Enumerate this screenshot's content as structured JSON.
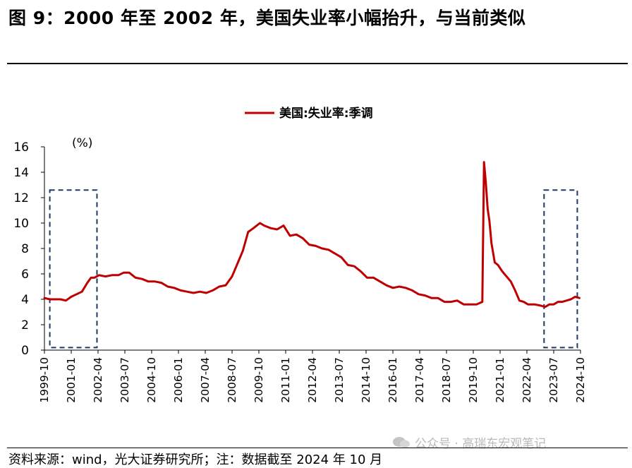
{
  "header": {
    "title": "图 9：2000 年至 2002 年，美国失业率小幅抬升，与当前类似"
  },
  "footer": {
    "source": "资料来源：wind，光大证券研究所；注：数据截至 2024 年 10 月",
    "watermark": "公众号 · 高瑞东宏观笔记"
  },
  "chart_data": {
    "type": "line",
    "title": "",
    "unit_label": "(%)",
    "xlabel": "",
    "ylabel": "(%)",
    "ylim": [
      0,
      16
    ],
    "yticks": [
      0,
      2,
      4,
      6,
      8,
      10,
      12,
      14,
      16
    ],
    "x_range": [
      1999.75,
      2024.75
    ],
    "xtick_labels": [
      "1999-10",
      "2001-01",
      "2002-04",
      "2003-07",
      "2004-10",
      "2006-01",
      "2007-04",
      "2008-07",
      "2009-10",
      "2011-01",
      "2012-04",
      "2013-07",
      "2014-10",
      "2016-01",
      "2017-04",
      "2018-07",
      "2019-10",
      "2021-01",
      "2022-04",
      "2023-07",
      "2024-10"
    ],
    "legend": "top-center",
    "series": [
      {
        "name": "美国:失业率:季调",
        "color": "#c00000",
        "x": [
          1999.75,
          2000.0,
          2000.25,
          2000.5,
          2000.75,
          2001.0,
          2001.25,
          2001.5,
          2001.75,
          2001.92,
          2002.08,
          2002.3,
          2002.6,
          2002.9,
          2003.2,
          2003.45,
          2003.7,
          2004.0,
          2004.3,
          2004.6,
          2004.9,
          2005.2,
          2005.5,
          2005.8,
          2006.1,
          2006.4,
          2006.7,
          2007.0,
          2007.3,
          2007.6,
          2007.9,
          2008.2,
          2008.5,
          2008.75,
          2009.0,
          2009.25,
          2009.5,
          2009.8,
          2010.0,
          2010.3,
          2010.6,
          2010.9,
          2011.2,
          2011.5,
          2011.8,
          2012.1,
          2012.4,
          2012.7,
          2013.0,
          2013.3,
          2013.6,
          2013.9,
          2014.2,
          2014.5,
          2014.8,
          2015.1,
          2015.4,
          2015.7,
          2016.0,
          2016.3,
          2016.6,
          2016.9,
          2017.2,
          2017.5,
          2017.8,
          2018.1,
          2018.4,
          2018.7,
          2019.0,
          2019.3,
          2019.6,
          2019.9,
          2020.17,
          2020.25,
          2020.33,
          2020.42,
          2020.5,
          2020.6,
          2020.75,
          2020.9,
          2021.1,
          2021.3,
          2021.5,
          2021.7,
          2021.9,
          2022.1,
          2022.3,
          2022.6,
          2022.9,
          2023.1,
          2023.3,
          2023.5,
          2023.7,
          2023.9,
          2024.1,
          2024.3,
          2024.5,
          2024.7
        ],
        "y": [
          4.1,
          4.0,
          4.0,
          4.0,
          3.9,
          4.2,
          4.4,
          4.6,
          5.3,
          5.7,
          5.7,
          5.9,
          5.8,
          5.9,
          5.9,
          6.1,
          6.1,
          5.7,
          5.6,
          5.4,
          5.4,
          5.3,
          5.0,
          4.9,
          4.7,
          4.6,
          4.5,
          4.6,
          4.5,
          4.7,
          5.0,
          5.1,
          5.8,
          6.8,
          7.8,
          9.3,
          9.6,
          10.0,
          9.8,
          9.6,
          9.5,
          9.8,
          9.0,
          9.1,
          8.8,
          8.3,
          8.2,
          8.0,
          7.9,
          7.6,
          7.3,
          6.7,
          6.6,
          6.2,
          5.7,
          5.7,
          5.4,
          5.1,
          4.9,
          5.0,
          4.9,
          4.7,
          4.4,
          4.3,
          4.1,
          4.1,
          3.8,
          3.8,
          3.9,
          3.6,
          3.6,
          3.6,
          3.8,
          14.8,
          13.3,
          11.1,
          10.2,
          8.4,
          6.9,
          6.7,
          6.2,
          5.8,
          5.4,
          4.7,
          3.9,
          3.8,
          3.6,
          3.6,
          3.5,
          3.4,
          3.6,
          3.6,
          3.8,
          3.8,
          3.9,
          4.0,
          4.2,
          4.1
        ]
      }
    ],
    "annotations": [
      {
        "type": "dashed-box",
        "x_start": 2000.0,
        "x_end": 2002.2,
        "y_min": 0.2,
        "y_max": 12.6
      },
      {
        "type": "dashed-box",
        "x_start": 2023.05,
        "x_end": 2024.6,
        "y_min": 0.2,
        "y_max": 12.6
      }
    ]
  }
}
